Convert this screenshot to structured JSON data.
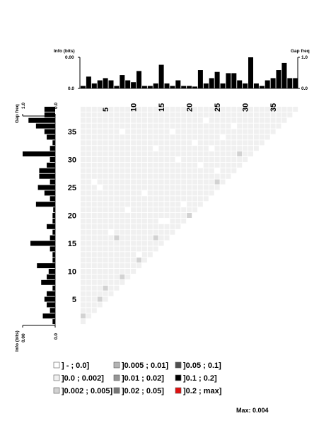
{
  "chart_data": {
    "type": "heatmap",
    "n": 39,
    "top_axis_label": "Info (bits)",
    "top_axis_ticks": [
      "0.00",
      "0.0"
    ],
    "gap_axis_label": "Gap freq",
    "gap_axis_ticks": [
      "1.0",
      "0.0"
    ],
    "left_gap_label": "Gap freq",
    "left_gap_ticks": [
      "1.0",
      "0.0"
    ],
    "left_info_label": "Info (bits)",
    "left_info_ticks": [
      "0.00",
      "0.0"
    ],
    "position_ticks": [
      5,
      10,
      15,
      20,
      25,
      30,
      35
    ],
    "position_tick_labels": [
      "5",
      "10",
      "15",
      "20",
      "25",
      "30",
      "35"
    ],
    "gap_freq": [
      0.08,
      0.38,
      0.16,
      0.26,
      0.33,
      0.26,
      0.08,
      0.43,
      0.26,
      0.2,
      0.56,
      0.08,
      0.08,
      0.16,
      0.76,
      0.16,
      0.08,
      0.26,
      0.08,
      0.08,
      0.06,
      0.59,
      0.16,
      0.33,
      0.53,
      0.16,
      0.49,
      0.49,
      0.26,
      0.16,
      1.0,
      0.16,
      0.08,
      0.26,
      0.33,
      0.59,
      0.82,
      0.33,
      0.33
    ],
    "cell_base_color": "#f0f0f0",
    "highlight_cells": [
      {
        "i": 1,
        "j": 2,
        "bin": "]0.002 ; 0.005]"
      },
      {
        "i": 4,
        "j": 5,
        "bin": "]0.002 ; 0.005]"
      },
      {
        "i": 5,
        "j": 7,
        "bin": "]0.002 ; 0.005]"
      },
      {
        "i": 8,
        "j": 9,
        "bin": "]0.002 ; 0.005]"
      },
      {
        "i": 11,
        "j": 12,
        "bin": "]0.002 ; 0.005]"
      },
      {
        "i": 7,
        "j": 16,
        "bin": "]0.002 ; 0.005]"
      },
      {
        "i": 14,
        "j": 16,
        "bin": "]0.002 ; 0.005]"
      },
      {
        "i": 20,
        "j": 20,
        "bin": "]0.002 ; 0.005]"
      },
      {
        "i": 25,
        "j": 26,
        "bin": "]0.002 ; 0.005]"
      },
      {
        "i": 29,
        "j": 31,
        "bin": "]0.002 ; 0.005]"
      }
    ],
    "white_cells": [
      {
        "i": 8,
        "j": 35
      },
      {
        "i": 17,
        "j": 35
      },
      {
        "i": 23,
        "j": 37
      },
      {
        "i": 28,
        "j": 36
      },
      {
        "i": 14,
        "j": 32
      },
      {
        "i": 18,
        "j": 30
      },
      {
        "i": 22,
        "j": 29
      },
      {
        "i": 25,
        "j": 28
      },
      {
        "i": 4,
        "j": 25
      },
      {
        "i": 12,
        "j": 24
      },
      {
        "i": 19,
        "j": 22
      },
      {
        "i": 9,
        "j": 21
      },
      {
        "i": 15,
        "j": 19
      },
      {
        "i": 16,
        "j": 19
      },
      {
        "i": 6,
        "j": 17
      },
      {
        "i": 3,
        "j": 26
      },
      {
        "i": 24,
        "j": 32
      },
      {
        "i": 21,
        "j": 33
      },
      {
        "i": 26,
        "j": 34
      },
      {
        "i": 11,
        "j": 13
      }
    ],
    "legend": [
      {
        "label": "] - ; 0.0]",
        "color": "#ffffff"
      },
      {
        "label": "]0.0 ; 0.002]",
        "color": "#f0f0f0"
      },
      {
        "label": "]0.002 ; 0.005]",
        "color": "#d2d2d2"
      },
      {
        "label": "]0.005 ; 0.01]",
        "color": "#b4b4b4"
      },
      {
        "label": "]0.01 ; 0.02]",
        "color": "#969696"
      },
      {
        "label": "]0.02 ; 0.05]",
        "color": "#787878"
      },
      {
        "label": "]0.05 ; 0.1]",
        "color": "#505050"
      },
      {
        "label": "]0.1 ; 0.2]",
        "color": "#000000"
      },
      {
        "label": "]0.2 ; max]",
        "color": "#e01010"
      }
    ],
    "max_label": "Max: 0.004"
  }
}
